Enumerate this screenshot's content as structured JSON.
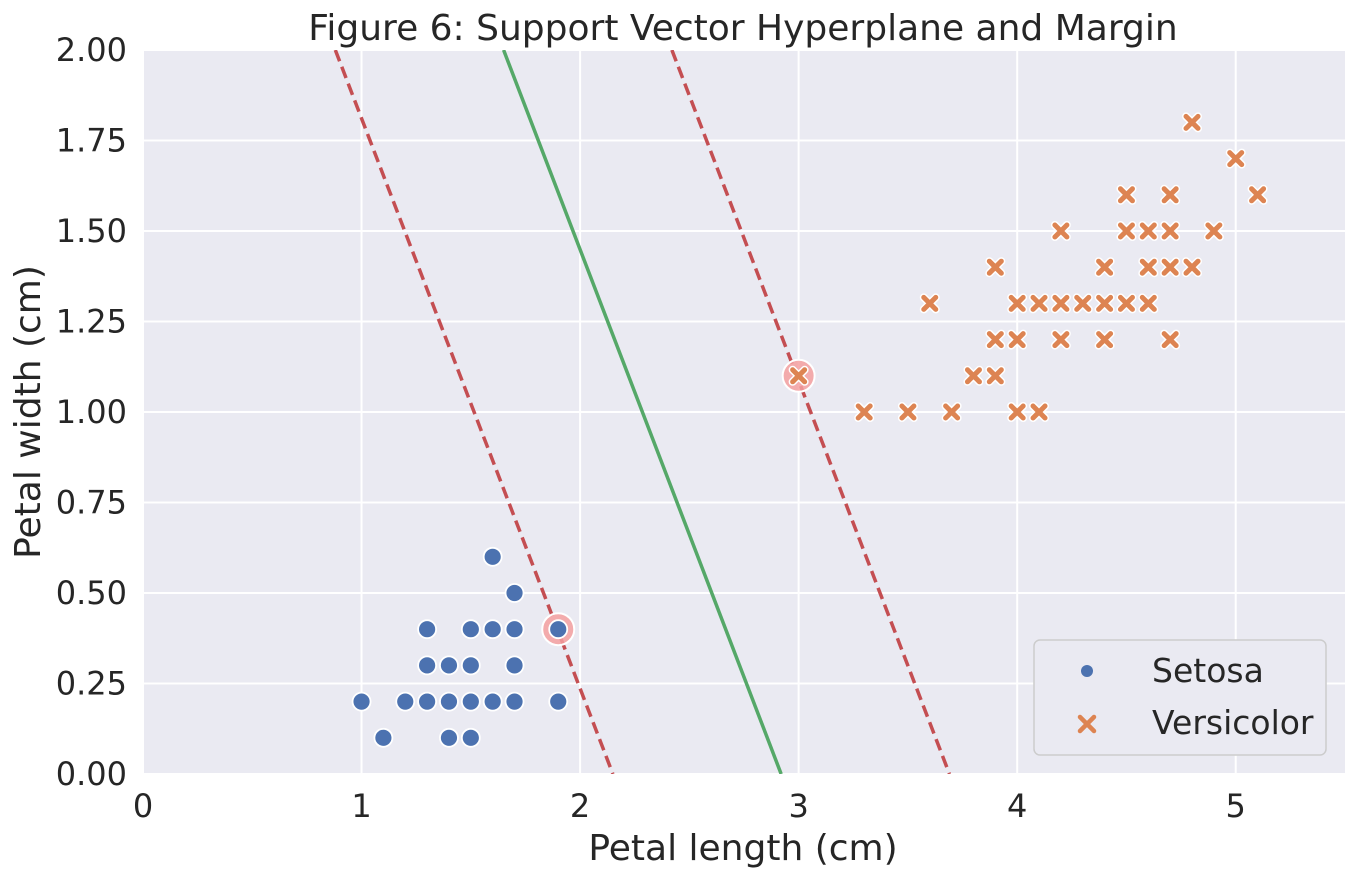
{
  "chart_data": {
    "type": "scatter",
    "title": "Figure 6: Support Vector Hyperplane and Margin",
    "xlabel": "Petal length (cm)",
    "ylabel": "Petal width (cm)",
    "xlim": [
      0,
      5.5
    ],
    "ylim": [
      0,
      2.0
    ],
    "x_ticks": [
      0,
      1,
      2,
      3,
      4,
      5
    ],
    "x_tick_labels": [
      "0",
      "1",
      "2",
      "3",
      "4",
      "5"
    ],
    "y_ticks": [
      0,
      0.25,
      0.5,
      0.75,
      1.0,
      1.25,
      1.5,
      1.75,
      2.0
    ],
    "y_tick_labels": [
      "0.00",
      "0.25",
      "0.50",
      "0.75",
      "1.00",
      "1.25",
      "1.50",
      "1.75",
      "2.00"
    ],
    "grid": true,
    "background": "#eaeaf2",
    "legend_position": "bottom-right",
    "series": [
      {
        "name": "Setosa",
        "marker": "circle",
        "color": "#4c72b0",
        "points": [
          [
            1.0,
            0.2
          ],
          [
            1.1,
            0.1
          ],
          [
            1.2,
            0.2
          ],
          [
            1.3,
            0.2
          ],
          [
            1.3,
            0.3
          ],
          [
            1.3,
            0.4
          ],
          [
            1.4,
            0.1
          ],
          [
            1.4,
            0.2
          ],
          [
            1.4,
            0.3
          ],
          [
            1.5,
            0.1
          ],
          [
            1.5,
            0.2
          ],
          [
            1.5,
            0.3
          ],
          [
            1.5,
            0.4
          ],
          [
            1.6,
            0.2
          ],
          [
            1.6,
            0.4
          ],
          [
            1.6,
            0.6
          ],
          [
            1.7,
            0.2
          ],
          [
            1.7,
            0.3
          ],
          [
            1.7,
            0.4
          ],
          [
            1.7,
            0.5
          ],
          [
            1.9,
            0.2
          ],
          [
            1.9,
            0.4
          ]
        ]
      },
      {
        "name": "Versicolor",
        "marker": "x",
        "color": "#dd8452",
        "points": [
          [
            3.0,
            1.1
          ],
          [
            3.3,
            1.0
          ],
          [
            3.5,
            1.0
          ],
          [
            3.6,
            1.3
          ],
          [
            3.7,
            1.0
          ],
          [
            3.8,
            1.1
          ],
          [
            3.9,
            1.1
          ],
          [
            3.9,
            1.2
          ],
          [
            3.9,
            1.4
          ],
          [
            4.0,
            1.0
          ],
          [
            4.0,
            1.2
          ],
          [
            4.0,
            1.3
          ],
          [
            4.1,
            1.0
          ],
          [
            4.1,
            1.3
          ],
          [
            4.2,
            1.2
          ],
          [
            4.2,
            1.3
          ],
          [
            4.2,
            1.5
          ],
          [
            4.3,
            1.3
          ],
          [
            4.4,
            1.2
          ],
          [
            4.4,
            1.3
          ],
          [
            4.4,
            1.4
          ],
          [
            4.5,
            1.3
          ],
          [
            4.5,
            1.5
          ],
          [
            4.5,
            1.6
          ],
          [
            4.6,
            1.3
          ],
          [
            4.6,
            1.4
          ],
          [
            4.6,
            1.5
          ],
          [
            4.7,
            1.2
          ],
          [
            4.7,
            1.4
          ],
          [
            4.7,
            1.5
          ],
          [
            4.7,
            1.6
          ],
          [
            4.8,
            1.4
          ],
          [
            4.8,
            1.8
          ],
          [
            4.9,
            1.5
          ],
          [
            5.0,
            1.7
          ],
          [
            5.1,
            1.6
          ]
        ]
      }
    ],
    "support_vectors": {
      "color": "#f4a0a0",
      "points": [
        [
          1.9,
          0.4
        ],
        [
          3.0,
          1.1
        ]
      ]
    },
    "lines": [
      {
        "role": "hyperplane",
        "style": "solid",
        "color": "#55a868",
        "points": [
          [
            1.65,
            2.0
          ],
          [
            2.92,
            0.0
          ]
        ]
      },
      {
        "role": "margin",
        "style": "dashed",
        "color": "#c44e52",
        "points": [
          [
            0.88,
            2.0
          ],
          [
            2.15,
            0.0
          ]
        ]
      },
      {
        "role": "margin",
        "style": "dashed",
        "color": "#c44e52",
        "points": [
          [
            2.42,
            2.0
          ],
          [
            3.69,
            0.0
          ]
        ]
      }
    ]
  }
}
